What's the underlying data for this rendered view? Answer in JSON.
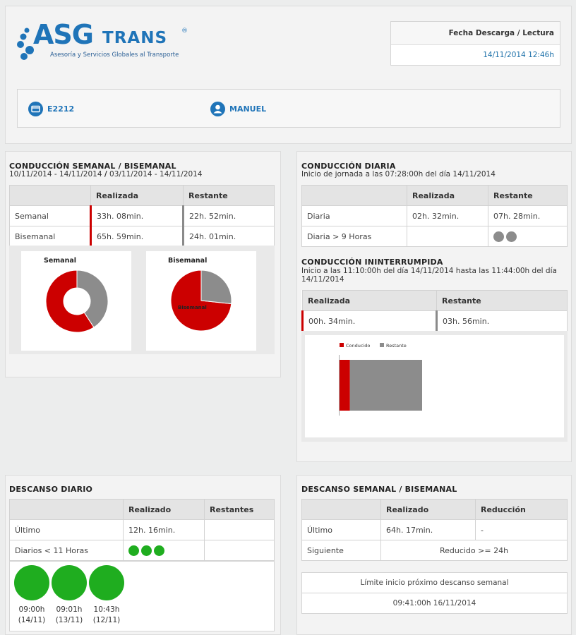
{
  "header": {
    "logo_brand": "ASG",
    "logo_trans": "TRANS",
    "logo_reg": "®",
    "logo_tagline": "Asesoría y Servicios Globales al Transporte",
    "download_label": "Fecha Descarga / Lectura",
    "download_value": "14/11/2014 12:46h",
    "card_number": "E2212",
    "driver_name": "MANUEL"
  },
  "colors": {
    "red": "#cc0000",
    "gray": "#8c8c8c",
    "green": "#1fad1f",
    "blue": "#1f74b8"
  },
  "semanal": {
    "title": "CONDUCCIÓN SEMANAL / BISEMANAL",
    "range_a": "10/11/2014 - 14/11/2014",
    "range_sep": "/",
    "range_b": "03/11/2014 - 14/11/2014",
    "col_realizada": "Realizada",
    "col_restante": "Restante",
    "rows": [
      {
        "label": "Semanal",
        "realizada": "33h. 08min.",
        "restante": "22h. 52min."
      },
      {
        "label": "Bisemanal",
        "realizada": "65h. 59min.",
        "restante": "24h. 01min."
      }
    ]
  },
  "diaria": {
    "title": "CONDUCCIÓN DIARIA",
    "subtitle": "Inicio de jornada a las 07:28:00h del día 14/11/2014",
    "col_realizada": "Realizada",
    "col_restante": "Restante",
    "row1": {
      "label": "Diaria",
      "realizada": "02h. 32min.",
      "restante": "07h. 28min."
    },
    "row2": {
      "label": "Diaria > 9 Horas",
      "dots": 2
    }
  },
  "ininterrumpida": {
    "title": "CONDUCCIÓN ININTERRUMPIDA",
    "subtitle_line1": "Inicio a las 11:10:00h del día 14/11/2014 hasta las 11:44:00h del día",
    "subtitle_line2": "14/11/2014",
    "col_realizada": "Realizada",
    "col_restante": "Restante",
    "realizada": "00h. 34min.",
    "restante": "03h. 56min."
  },
  "descanso_diario": {
    "title": "DESCANSO DIARIO",
    "col_realizado": "Realizado",
    "col_restantes": "Restantes",
    "row1": {
      "label": "Último",
      "realizado": "12h. 16min.",
      "restantes": ""
    },
    "row2": {
      "label": "Diarios < 11 Horas",
      "dots": 3
    },
    "rests": [
      {
        "time": "09:00h",
        "date": "(14/11)"
      },
      {
        "time": "09:01h",
        "date": "(13/11)"
      },
      {
        "time": "10:43h",
        "date": "(12/11)"
      }
    ]
  },
  "descanso_semanal": {
    "title": "DESCANSO SEMANAL / BISEMANAL",
    "col_realizado": "Realizado",
    "col_reduccion": "Reducción",
    "row1": {
      "label": "Último",
      "realizado": "64h. 17min.",
      "reduccion": "-"
    },
    "row2": {
      "label": "Siguiente",
      "value": "Reducido >= 24h"
    },
    "limit_label": "Límite inicio próximo descanso semanal",
    "limit_value": "09:41:00h 16/11/2014"
  },
  "chart_data": [
    {
      "type": "pie",
      "title": "Semanal",
      "variant": "donut",
      "categories": [
        "Conducido",
        "Restante"
      ],
      "values": [
        33.13,
        22.87
      ],
      "colors": [
        "#cc0000",
        "#8c8c8c"
      ]
    },
    {
      "type": "pie",
      "title": "Bisemanal",
      "categories": [
        "Conducido",
        "Restante"
      ],
      "values": [
        65.98,
        24.02
      ],
      "colors": [
        "#cc0000",
        "#8c8c8c"
      ],
      "annotation": "Bisemanal"
    },
    {
      "type": "bar",
      "orientation": "horizontal-stacked",
      "categories": [
        "Ininterrumpida"
      ],
      "series": [
        {
          "name": "Conducido",
          "values": [
            34
          ],
          "color": "#cc0000"
        },
        {
          "name": "Restante",
          "values": [
            236
          ],
          "color": "#8c8c8c"
        }
      ],
      "legend": "top"
    }
  ]
}
